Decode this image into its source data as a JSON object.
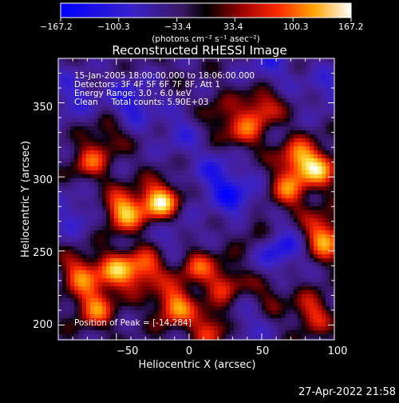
{
  "chart_data": {
    "type": "heatmap",
    "title": "Reconstructed RHESSI Image",
    "xlabel": "Heliocentric X (arcsec)",
    "ylabel": "Heliocentric Y (arcsec)",
    "xlim": [
      -90,
      100
    ],
    "ylim": [
      190,
      380
    ],
    "x_ticks": [
      -50,
      0,
      50,
      100
    ],
    "y_ticks": [
      200,
      250,
      300,
      350
    ],
    "colorbar": {
      "range": [
        -167.2,
        167.2
      ],
      "tick_labels": [
        "−167.2",
        "−100.3",
        "−33.4",
        "33.4",
        "100.3",
        "167.2"
      ],
      "unit_label": "(photons cm⁻² s⁻¹ asec⁻²)"
    },
    "annotations": [
      "15-Jan-2005 18:00:00.000 to 18:06:00.000",
      "Detectors: 3F 4F 5F 6F 7F 8F, Att 1",
      "Energy Range: 3.0 - 6.0 keV",
      "Clean     Total counts: 5.90E+03",
      "Position of Peak = [-14,284]"
    ],
    "bright_sources": [
      {
        "x": -20,
        "y": 283,
        "level": 1.0
      },
      {
        "x": -45,
        "y": 277,
        "level": 0.9
      },
      {
        "x": -50,
        "y": 236,
        "level": 0.75
      },
      {
        "x": -30,
        "y": 238,
        "level": 0.7
      },
      {
        "x": -75,
        "y": 235,
        "level": 0.65
      },
      {
        "x": -65,
        "y": 212,
        "level": 0.7
      },
      {
        "x": -10,
        "y": 213,
        "level": 0.8
      },
      {
        "x": 15,
        "y": 198,
        "level": 0.6
      },
      {
        "x": 5,
        "y": 240,
        "level": 0.55
      },
      {
        "x": 25,
        "y": 228,
        "level": 0.5
      },
      {
        "x": 50,
        "y": 348,
        "level": 0.6
      },
      {
        "x": 38,
        "y": 330,
        "level": 0.5
      },
      {
        "x": 75,
        "y": 312,
        "level": 0.75
      },
      {
        "x": 90,
        "y": 305,
        "level": 0.7
      },
      {
        "x": 68,
        "y": 290,
        "level": 0.6
      },
      {
        "x": 45,
        "y": 265,
        "level": 0.45
      },
      {
        "x": 90,
        "y": 265,
        "level": 0.45
      },
      {
        "x": 95,
        "y": 255,
        "level": 0.55
      },
      {
        "x": -68,
        "y": 310,
        "level": 0.55
      },
      {
        "x": 85,
        "y": 208,
        "level": 0.55
      },
      {
        "x": -55,
        "y": 330,
        "level": 0.35
      },
      {
        "x": 20,
        "y": 340,
        "level": 0.35
      },
      {
        "x": 55,
        "y": 220,
        "level": 0.3
      }
    ],
    "dark_sources": [
      {
        "x": -40,
        "y": 350,
        "level": -0.55
      },
      {
        "x": -80,
        "y": 355,
        "level": -0.4
      },
      {
        "x": 62,
        "y": 252,
        "level": -0.6
      },
      {
        "x": 35,
        "y": 282,
        "level": -0.5
      },
      {
        "x": 20,
        "y": 300,
        "level": -0.5
      },
      {
        "x": 55,
        "y": 375,
        "level": -0.4
      },
      {
        "x": 95,
        "y": 360,
        "level": -0.35
      },
      {
        "x": -5,
        "y": 330,
        "level": -0.35
      },
      {
        "x": -10,
        "y": 260,
        "level": -0.3
      },
      {
        "x": 40,
        "y": 200,
        "level": -0.3
      },
      {
        "x": -80,
        "y": 275,
        "level": -0.35
      }
    ]
  },
  "footer": {
    "timestamp": "27-Apr-2022 21:58"
  }
}
